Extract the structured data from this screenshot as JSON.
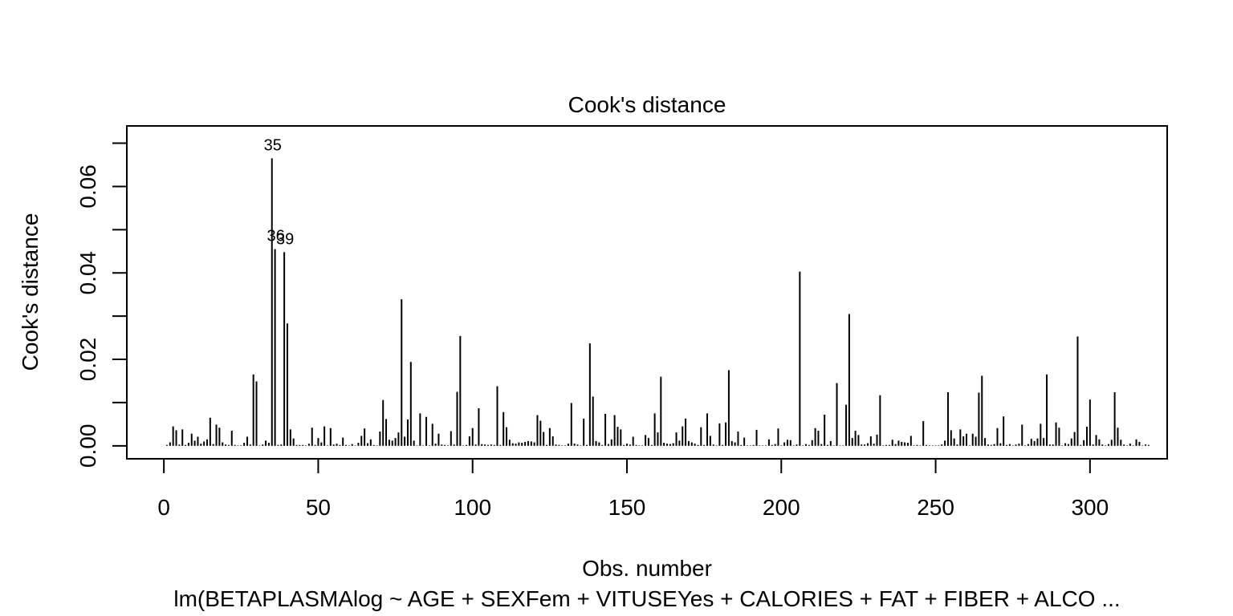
{
  "chart_data": {
    "type": "bar",
    "title": "Cook's distance",
    "xlabel": "Obs. number",
    "ylabel": "Cook's distance",
    "subtitle": "lm(BETAPLASMAlog ~ AGE + SEXFem + VITUSEYes + CALORIES + FAT + FIBER + ALCO ...",
    "xlim": [
      -12,
      325
    ],
    "ylim": [
      -0.003,
      0.074
    ],
    "x_ticks": [
      0,
      50,
      100,
      150,
      200,
      250,
      300
    ],
    "x_tick_labels": [
      "0",
      "50",
      "100",
      "150",
      "200",
      "250",
      "300"
    ],
    "y_ticks": [
      0.0,
      0.01,
      0.02,
      0.03,
      0.04,
      0.05,
      0.06,
      0.07
    ],
    "y_tick_labels": [
      "0.00",
      "",
      "0.02",
      "",
      "0.04",
      "",
      "0.06",
      ""
    ],
    "point_labels": [
      {
        "obs": 35,
        "label": "35"
      },
      {
        "obs": 36,
        "label": "36"
      },
      {
        "obs": 39,
        "label": "39"
      }
    ],
    "values": [
      0.0002,
      0.0008,
      0.0045,
      0.0036,
      0.0003,
      0.0038,
      0.0002,
      0.0007,
      0.0028,
      0.0012,
      0.0021,
      0.0005,
      0.001,
      0.0015,
      0.0065,
      0.0004,
      0.0049,
      0.0042,
      0.0008,
      0.0003,
      0.0002,
      0.0035,
      0.0002,
      0.0001,
      0.0001,
      0.0007,
      0.0021,
      0.0003,
      0.0165,
      0.0149,
      0.0001,
      0.0003,
      0.0012,
      0.0007,
      0.0665,
      0.0455,
      0.0002,
      0.0003,
      0.0448,
      0.0283,
      0.0038,
      0.0017,
      0.0002,
      0.0002,
      0.0002,
      0.0001,
      0.0005,
      0.0042,
      0.0002,
      0.0018,
      0.0008,
      0.0045,
      0.0001,
      0.0041,
      0.0003,
      0.0005,
      0.0002,
      0.0019,
      0.0002,
      0.0001,
      0.0004,
      0.0001,
      0.0007,
      0.0023,
      0.004,
      0.0006,
      0.0015,
      0.0002,
      0.0001,
      0.0033,
      0.0106,
      0.0062,
      0.0014,
      0.0012,
      0.0018,
      0.0031,
      0.0339,
      0.0021,
      0.0061,
      0.0194,
      0.0012,
      0.0001,
      0.0075,
      0.0001,
      0.0067,
      0.0001,
      0.0051,
      0.0005,
      0.0028,
      0.0003,
      0.0002,
      0.0001,
      0.0034,
      0.0003,
      0.0125,
      0.0254,
      0.0001,
      0.0002,
      0.0022,
      0.0041,
      0.0003,
      0.0087,
      0.0004,
      0.0003,
      0.0002,
      0.0003,
      0.0002,
      0.0138,
      0.0002,
      0.0078,
      0.0043,
      0.0014,
      0.0006,
      0.0005,
      0.0008,
      0.0007,
      0.0009,
      0.0011,
      0.001,
      0.0008,
      0.0071,
      0.0058,
      0.0032,
      0.0002,
      0.0041,
      0.0022,
      0.0003,
      0.0002,
      0.0001,
      0.0001,
      0.0005,
      0.0099,
      0.0005,
      0.0003,
      0.0001,
      0.0063,
      0.0002,
      0.0237,
      0.0114,
      0.0011,
      0.0008,
      0.0002,
      0.0074,
      0.0004,
      0.0015,
      0.0071,
      0.0044,
      0.0038,
      0.0002,
      0.0005,
      0.0003,
      0.0021,
      0.0002,
      0.0001,
      0.0001,
      0.0025,
      0.0018,
      0.0002,
      0.0075,
      0.0031,
      0.016,
      0.0007,
      0.0005,
      0.0004,
      0.0006,
      0.0031,
      0.0012,
      0.0045,
      0.0063,
      0.0011,
      0.0008,
      0.0005,
      0.0002,
      0.0043,
      0.0002,
      0.0075,
      0.0023,
      0.0003,
      0.0001,
      0.0052,
      0.0002,
      0.0054,
      0.0175,
      0.0011,
      0.0008,
      0.0033,
      0.0002,
      0.0019,
      0.0001,
      0.0001,
      0.0002,
      0.0037,
      0.0001,
      0.0001,
      0.0001,
      0.0015,
      0.0002,
      0.0004,
      0.004,
      0.0001,
      0.0008,
      0.0014,
      0.0013,
      0.0001,
      0.0003,
      0.0403,
      0.0001,
      0.0004,
      0.0002,
      0.0013,
      0.0041,
      0.0035,
      0.0004,
      0.0072,
      0.0002,
      0.0011,
      0.0001,
      0.0145,
      0.0001,
      0.0001,
      0.0095,
      0.0305,
      0.0018,
      0.0035,
      0.0025,
      0.0003,
      0.0003,
      0.0006,
      0.0022,
      0.0005,
      0.0026,
      0.0117,
      0.0001,
      0.0002,
      0.0002,
      0.0014,
      0.0004,
      0.0012,
      0.0009,
      0.0008,
      0.0007,
      0.0023,
      0.0001,
      0.0002,
      0.0001,
      0.0057,
      0.0002,
      0.0001,
      0.0001,
      0.0001,
      0.0001,
      0.0003,
      0.0012,
      0.0124,
      0.0036,
      0.0017,
      0.0003,
      0.0038,
      0.0022,
      0.0028,
      0.0001,
      0.0028,
      0.0021,
      0.0123,
      0.0162,
      0.0018,
      0.0003,
      0.0002,
      0.0004,
      0.0041,
      0.0006,
      0.0068,
      0.0002,
      0.0004,
      0.0001,
      0.0003,
      0.0005,
      0.0049,
      0.0001,
      0.0004,
      0.0016,
      0.0011,
      0.0017,
      0.0051,
      0.0018,
      0.0165,
      0.0003,
      0.0003,
      0.0054,
      0.0042,
      0.0001,
      0.0006,
      0.0004,
      0.0017,
      0.0032,
      0.0253,
      0.0002,
      0.0013,
      0.0044,
      0.0107,
      0.0003,
      0.0025,
      0.0015,
      0.0003,
      0.0001,
      0.0004,
      0.0014,
      0.0124,
      0.0042,
      0.0014,
      0.0003,
      0.0001,
      0.0005,
      0.0001,
      0.0015,
      0.0009,
      0.0001,
      0.0003,
      0.0002
    ]
  }
}
